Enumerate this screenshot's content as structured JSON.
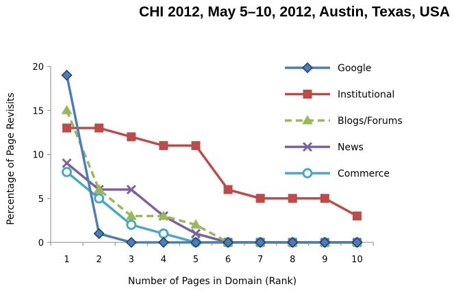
{
  "header": {
    "text": "CHI 2012, May 5–10, 2012, Austin, Texas, USA"
  },
  "chart_data": {
    "type": "line",
    "title": "",
    "xlabel": "Number of Pages in Domain (Rank)",
    "ylabel": "Percentage of Page Revisits",
    "categories": [
      "1",
      "2",
      "3",
      "4",
      "5",
      "6",
      "7",
      "8",
      "9",
      "10"
    ],
    "ylim": [
      0,
      20
    ],
    "yticks": [
      0,
      5,
      10,
      15,
      20
    ],
    "grid": false,
    "legend_position": "right",
    "series": [
      {
        "name": "Google",
        "color": "#4a7ebb",
        "marker": "diamond",
        "dash": "solid",
        "values": [
          19,
          1,
          0,
          0,
          0,
          0,
          0,
          0,
          0,
          0
        ]
      },
      {
        "name": "Institutional",
        "color": "#be4b48",
        "marker": "square",
        "dash": "solid",
        "values": [
          13,
          13,
          12,
          11,
          11,
          6,
          5,
          5,
          5,
          3
        ]
      },
      {
        "name": "Blogs/Forums",
        "color": "#98b954",
        "marker": "triangle",
        "dash": "dashed",
        "values": [
          15,
          6,
          3,
          3,
          2,
          0,
          0,
          0,
          0,
          0
        ]
      },
      {
        "name": "News",
        "color": "#7d60a0",
        "marker": "x",
        "dash": "solid",
        "values": [
          9,
          6,
          6,
          3,
          1,
          0,
          0,
          0,
          0,
          0
        ]
      },
      {
        "name": "Commerce",
        "color": "#46aac5",
        "marker": "circle",
        "dash": "solid",
        "values": [
          8,
          5,
          2,
          1,
          0,
          0,
          0,
          0,
          0,
          0
        ]
      }
    ]
  }
}
